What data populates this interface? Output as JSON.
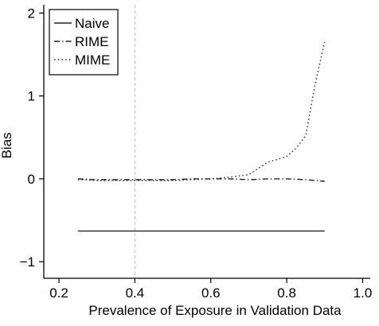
{
  "chart_data": {
    "type": "line",
    "title": "",
    "xlabel": "Prevalence of Exposure in Validation Data",
    "ylabel": "Bias",
    "xlim": [
      0.16,
      1.02
    ],
    "ylim": [
      -1.2,
      2.1
    ],
    "xticks": [
      0.2,
      0.4,
      0.6,
      0.8,
      1.0
    ],
    "xtick_labels": [
      "0.2",
      "0.4",
      "0.6",
      "0.8",
      "1.0"
    ],
    "yticks": [
      -1,
      0,
      1,
      2
    ],
    "ytick_labels": [
      "−1",
      "0",
      "1",
      "2"
    ],
    "grid": false,
    "legend_position": "top-left",
    "reference_line": {
      "x": 0.4,
      "color": "#bbbbbb",
      "style": "dashed"
    },
    "series": [
      {
        "name": "Naive",
        "style": "solid",
        "color": "#222222",
        "x": [
          0.25,
          0.9
        ],
        "y": [
          -0.63,
          -0.63
        ]
      },
      {
        "name": "RIME",
        "style": "dashdot",
        "color": "#222222",
        "x": [
          0.25,
          0.3,
          0.35,
          0.4,
          0.45,
          0.5,
          0.55,
          0.6,
          0.65,
          0.7,
          0.75,
          0.8,
          0.85,
          0.9
        ],
        "y": [
          0.0,
          -0.01,
          -0.01,
          -0.01,
          -0.01,
          -0.01,
          0.0,
          0.0,
          0.0,
          -0.01,
          0.0,
          0.0,
          -0.01,
          -0.03
        ]
      },
      {
        "name": "MIME",
        "style": "dotted",
        "color": "#222222",
        "x": [
          0.25,
          0.3,
          0.35,
          0.4,
          0.45,
          0.5,
          0.55,
          0.6,
          0.65,
          0.7,
          0.75,
          0.8,
          0.825,
          0.85,
          0.875,
          0.9
        ],
        "y": [
          -0.01,
          -0.02,
          -0.02,
          -0.02,
          -0.02,
          -0.02,
          -0.01,
          0.0,
          0.02,
          0.05,
          0.2,
          0.27,
          0.37,
          0.52,
          1.15,
          1.65
        ]
      }
    ]
  }
}
